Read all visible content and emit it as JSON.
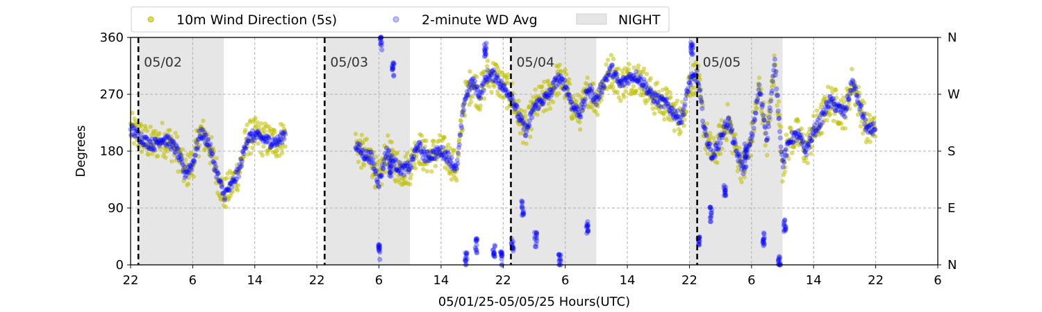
{
  "chart_data": {
    "type": "scatter",
    "xlabel": "05/01/25-05/05/25  Hours(UTC)",
    "ylabel": "Degrees",
    "xlim": [
      0,
      104
    ],
    "ylim": [
      0,
      360
    ],
    "x_unit": "hours since 05/01/25 22:00 UTC",
    "x_ticks": [
      0,
      8,
      16,
      24,
      32,
      40,
      48,
      56,
      64,
      72,
      80,
      88,
      96,
      104
    ],
    "x_tick_labels": [
      "22",
      "6",
      "14",
      "22",
      "6",
      "14",
      "22",
      "6",
      "14",
      "22",
      "6",
      "14",
      "22",
      "6"
    ],
    "y_ticks": [
      0,
      90,
      180,
      270,
      360
    ],
    "y_tick_labels": [
      "0",
      "90",
      "180",
      "270",
      "360"
    ],
    "y2_tick_labels": [
      "N",
      "E",
      "S",
      "W",
      "N"
    ],
    "grid": true,
    "legend": {
      "placement": "top-left",
      "entries": [
        {
          "label": "10m Wind Direction (5s)",
          "color": "#bfbf00",
          "marker": "circle"
        },
        {
          "label": "2-minute WD Avg",
          "color": "#0000ff",
          "marker": "circle"
        },
        {
          "label": "NIGHT",
          "color": "#e6e6e6",
          "marker": "rect"
        }
      ]
    },
    "night_bands": [
      [
        1,
        12
      ],
      [
        25,
        36
      ],
      [
        49,
        60
      ],
      [
        72,
        84
      ]
    ],
    "day_markers": [
      {
        "x": 1,
        "label": "05/02"
      },
      {
        "x": 25,
        "label": "05/03"
      },
      {
        "x": 49,
        "label": "05/04"
      },
      {
        "x": 73,
        "label": "05/05"
      }
    ],
    "series": [
      {
        "name": "10m Wind Direction (5s)",
        "color": "#bfbf00",
        "spread": 28,
        "segments": [
          [
            [
              0,
              215
            ],
            [
              1,
              205
            ],
            [
              2,
              195
            ],
            [
              3,
              190
            ],
            [
              4,
              200
            ],
            [
              5,
              195
            ],
            [
              6,
              180
            ],
            [
              7,
              145
            ],
            [
              8,
              160
            ],
            [
              9,
              210
            ],
            [
              10,
              195
            ],
            [
              11,
              150
            ],
            [
              12,
              110
            ],
            [
              13,
              125
            ],
            [
              14,
              150
            ],
            [
              15,
              200
            ],
            [
              16,
              205
            ],
            [
              17,
              200
            ],
            [
              18,
              195
            ],
            [
              19,
              195
            ],
            [
              20,
              210
            ]
          ],
          [
            [
              29,
              190
            ],
            [
              30,
              175
            ],
            [
              31,
              170
            ],
            [
              32,
              130
            ],
            [
              33,
              180
            ],
            [
              34,
              160
            ],
            [
              35,
              150
            ],
            [
              36,
              155
            ],
            [
              37,
              190
            ],
            [
              38,
              170
            ],
            [
              39,
              175
            ],
            [
              40,
              180
            ],
            [
              41,
              170
            ],
            [
              42,
              150
            ],
            [
              43,
              260
            ],
            [
              44,
              290
            ],
            [
              45,
              270
            ],
            [
              46,
              300
            ],
            [
              47,
              300
            ],
            [
              48,
              280
            ],
            [
              49,
              270
            ],
            [
              50,
              235
            ],
            [
              51,
              210
            ],
            [
              52,
              250
            ],
            [
              53,
              260
            ],
            [
              54,
              270
            ],
            [
              55,
              295
            ],
            [
              56,
              285
            ],
            [
              57,
              250
            ],
            [
              58,
              240
            ],
            [
              59,
              280
            ],
            [
              60,
              260
            ],
            [
              61,
              290
            ],
            [
              62,
              310
            ],
            [
              63,
              285
            ],
            [
              64,
              295
            ],
            [
              65,
              300
            ],
            [
              66,
              290
            ],
            [
              67,
              270
            ],
            [
              68,
              260
            ],
            [
              69,
              255
            ],
            [
              70,
              240
            ],
            [
              71,
              230
            ],
            [
              72,
              290
            ],
            [
              73,
              300
            ],
            [
              74,
              210
            ],
            [
              75,
              170
            ],
            [
              76,
              200
            ],
            [
              77,
              230
            ],
            [
              78,
              180
            ],
            [
              79,
              150
            ],
            [
              80,
              200
            ],
            [
              81,
              280
            ],
            [
              82,
              200
            ],
            [
              83,
              320
            ],
            [
              84,
              160
            ],
            [
              85,
              200
            ],
            [
              86,
              205
            ],
            [
              87,
              180
            ],
            [
              88,
              210
            ],
            [
              89,
              230
            ],
            [
              90,
              260
            ],
            [
              91,
              250
            ],
            [
              92,
              240
            ],
            [
              93,
              290
            ],
            [
              94,
              250
            ],
            [
              95,
              210
            ],
            [
              96,
              220
            ]
          ]
        ]
      },
      {
        "name": "2-minute WD Avg",
        "color": "#0000ff",
        "spread": 9,
        "segments": [
          [
            [
              0,
              215
            ],
            [
              1,
              205
            ],
            [
              2,
              195
            ],
            [
              3,
              190
            ],
            [
              4,
              200
            ],
            [
              5,
              195
            ],
            [
              6,
              180
            ],
            [
              7,
              145
            ],
            [
              8,
              160
            ],
            [
              9,
              210
            ],
            [
              10,
              195
            ],
            [
              11,
              150
            ],
            [
              12,
              110
            ],
            [
              13,
              125
            ],
            [
              14,
              150
            ],
            [
              15,
              200
            ],
            [
              16,
              205
            ],
            [
              17,
              200
            ],
            [
              18,
              195
            ],
            [
              19,
              195
            ],
            [
              20,
              210
            ]
          ],
          [
            [
              29,
              190
            ],
            [
              30,
              175
            ],
            [
              31,
              170
            ],
            [
              32,
              130
            ],
            [
              33,
              180
            ],
            [
              34,
              160
            ],
            [
              35,
              150
            ],
            [
              36,
              155
            ],
            [
              37,
              190
            ],
            [
              38,
              170
            ],
            [
              39,
              175
            ],
            [
              40,
              180
            ],
            [
              41,
              170
            ],
            [
              42,
              150
            ],
            [
              43,
              260
            ],
            [
              44,
              290
            ],
            [
              45,
              270
            ],
            [
              46,
              300
            ],
            [
              47,
              300
            ],
            [
              48,
              280
            ],
            [
              49,
              270
            ],
            [
              50,
              235
            ],
            [
              51,
              210
            ],
            [
              52,
              250
            ],
            [
              53,
              260
            ],
            [
              54,
              270
            ],
            [
              55,
              295
            ],
            [
              56,
              285
            ],
            [
              57,
              250
            ],
            [
              58,
              240
            ],
            [
              59,
              280
            ],
            [
              60,
              260
            ],
            [
              61,
              290
            ],
            [
              62,
              310
            ],
            [
              63,
              285
            ],
            [
              64,
              295
            ],
            [
              65,
              300
            ],
            [
              66,
              290
            ],
            [
              67,
              270
            ],
            [
              68,
              260
            ],
            [
              69,
              255
            ],
            [
              70,
              240
            ],
            [
              71,
              230
            ],
            [
              72,
              290
            ],
            [
              73,
              300
            ],
            [
              74,
              210
            ],
            [
              75,
              170
            ],
            [
              76,
              200
            ],
            [
              77,
              230
            ],
            [
              78,
              180
            ],
            [
              79,
              150
            ],
            [
              80,
              200
            ],
            [
              81,
              280
            ],
            [
              82,
              200
            ],
            [
              83,
              320
            ],
            [
              84,
              160
            ],
            [
              85,
              200
            ],
            [
              86,
              205
            ],
            [
              87,
              180
            ],
            [
              88,
              210
            ],
            [
              89,
              230
            ],
            [
              90,
              260
            ],
            [
              91,
              250
            ],
            [
              92,
              240
            ],
            [
              93,
              290
            ],
            [
              94,
              250
            ],
            [
              95,
              210
            ],
            [
              96,
              220
            ]
          ]
        ],
        "spikes": [
          [
            32.0,
            20
          ],
          [
            32.3,
            350
          ],
          [
            33.5,
            150
          ],
          [
            33.8,
            310
          ],
          [
            43.2,
            10
          ],
          [
            44.5,
            30
          ],
          [
            45.7,
            340
          ],
          [
            46.8,
            20
          ],
          [
            47.8,
            10
          ],
          [
            49.2,
            30
          ],
          [
            50.5,
            90
          ],
          [
            52.2,
            40
          ],
          [
            55.3,
            5
          ],
          [
            58.8,
            60
          ],
          [
            72.3,
            340
          ],
          [
            73.2,
            40
          ],
          [
            74.8,
            80
          ],
          [
            76.6,
            120
          ],
          [
            79.2,
            180
          ],
          [
            81.5,
            40
          ],
          [
            83.6,
            5
          ],
          [
            84.3,
            60
          ]
        ]
      }
    ]
  }
}
